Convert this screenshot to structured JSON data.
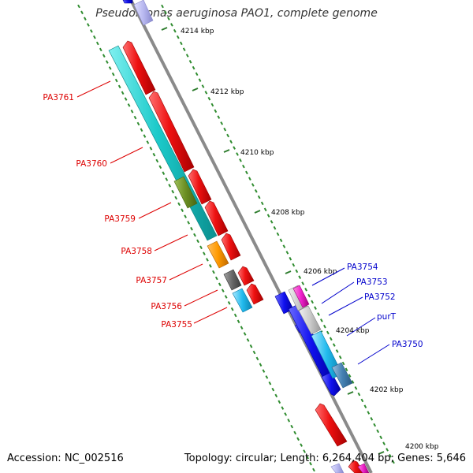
{
  "title": "Pseudomonas aeruginosa PAO1, complete genome",
  "footer": {
    "accession": "Accession: NC_002516",
    "summary": "Topology: circular; Length: 6,264,404 bp; Genes: 5,646"
  },
  "colors": {
    "backbone": "#8a8a8a",
    "tick_dots": "#2e8b2e",
    "reverse_label": "#dd0000",
    "forward_label": "#0000cc"
  },
  "scale_ticks": [
    "4214 kbp",
    "4212 kbp",
    "4210 kbp",
    "4208 kbp",
    "4206 kbp",
    "4204 kbp",
    "4202 kbp",
    "4200 kbp"
  ],
  "reverse_genes": [
    "PA3761",
    "PA3760",
    "PA3759",
    "PA3758",
    "PA3757",
    "PA3756",
    "PA3755"
  ],
  "forward_genes": [
    "PA3754",
    "PA3753",
    "PA3752",
    "purT",
    "PA3750"
  ]
}
